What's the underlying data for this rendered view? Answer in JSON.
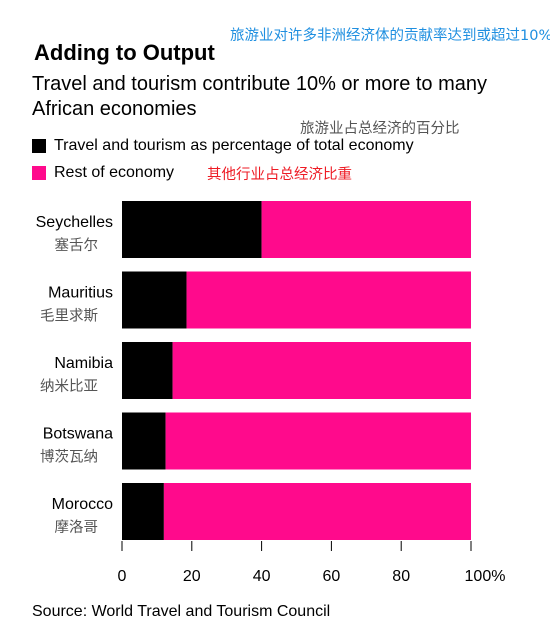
{
  "title": "Adding to Output",
  "subtitle": "Travel and tourism contribute 10% or more to many African economies",
  "annotations": {
    "title_cn": "旅游业对许多非洲经济体的贡献率达到或超过10%",
    "tourism_cn": "旅游业占总经济的百分比",
    "rest_cn": "其他行业占总经济比重"
  },
  "legend": [
    {
      "label": "Travel and tourism as percentage of total economy",
      "color": "#000000"
    },
    {
      "label": "Rest of economy",
      "color": "#ff0a8c"
    }
  ],
  "source": "Source: World Travel and Tourism Council",
  "chart_data": {
    "type": "bar",
    "orientation": "horizontal",
    "stacked": true,
    "categories": [
      "Seychelles",
      "Mauritius",
      "Namibia",
      "Botswana",
      "Morocco"
    ],
    "categories_cn": [
      "塞舌尔",
      "毛里求斯",
      "纳米比亚",
      "博茨瓦纳",
      "摩洛哥"
    ],
    "series": [
      {
        "name": "Travel and tourism as percentage of total economy",
        "color": "#000000",
        "values": [
          40,
          18.5,
          14.5,
          12.5,
          12
        ]
      },
      {
        "name": "Rest of economy",
        "color": "#ff0a8c",
        "values": [
          60,
          81.5,
          85.5,
          87.5,
          88
        ]
      }
    ],
    "xlim": [
      0,
      100
    ],
    "xticks": [
      "0",
      "20",
      "40",
      "60",
      "80",
      "100%"
    ],
    "grid": false,
    "legend_position": "top-left"
  }
}
